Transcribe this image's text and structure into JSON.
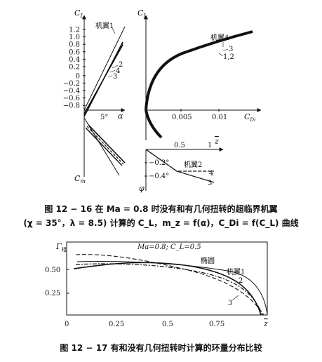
{
  "figure1": {
    "left_chart": {
      "y_label": "C",
      "y_label_sub": "L",
      "y_ticks": [
        "1.2",
        "1.0",
        "0.8",
        "0.6",
        "0.4",
        "0.2",
        "0",
        "−0.2",
        "−0.4",
        "−0.6",
        "−0.8"
      ],
      "y2_label": "C",
      "y2_label_sub": "m",
      "x_tick": "5°",
      "x_label": "α",
      "curve_labels": [
        "机翼1",
        "2",
        "4",
        "3"
      ]
    },
    "right_chart": {
      "y_label": "C",
      "y_label_sub": "L",
      "x_ticks": [
        "0.005",
        "0.01"
      ],
      "x_label": "C",
      "x_label_sub": "Di",
      "curve_labels": [
        "机翼4",
        "3",
        "1,2"
      ]
    },
    "bottom_chart": {
      "x_ticks": [
        "0.5",
        "1"
      ],
      "x_label": "z",
      "y_ticks": [
        "−0.2°",
        "−0.4°"
      ],
      "y_label": "φ",
      "curve_labels": [
        "机翼2",
        "4",
        "3"
      ]
    },
    "caption_line1": "图 12 − 16   在 Ma = 0.8 时没有和有几何扭转的超临界机翼",
    "caption_line2": "(χ = 35°，λ = 8.5) 计算的 C_L，m_z = f(α)，C_Di = f(C_L) 曲线"
  },
  "figure2": {
    "y_label": "Γ",
    "y_label_sub": "相",
    "y_ticks": [
      "0.50",
      "0.25"
    ],
    "x_ticks": [
      "0",
      "0.25",
      "0.5",
      "0.75",
      "z"
    ],
    "annotation": "Ma=0.8; C_L=0.5",
    "curve_labels": [
      "椭圆",
      "机翼1",
      "2",
      "3"
    ],
    "caption": "图 12 − 17   有和没有几何扭转时计算的环量分布比较"
  }
}
